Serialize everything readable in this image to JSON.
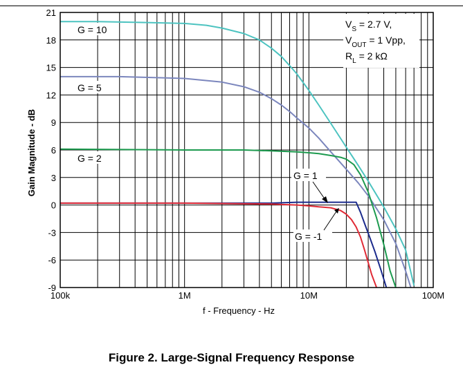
{
  "figure": {
    "caption": "Figure 2. Large-Signal Frequency Response"
  },
  "chart_data": {
    "type": "line",
    "title": "",
    "xlabel": "f - Frequency - Hz",
    "ylabel": "Gain Magnitude - dB",
    "x_scale": "log",
    "xlim": [
      100000,
      100000000
    ],
    "ylim": [
      -9,
      21
    ],
    "grid": true,
    "x_ticks": [
      {
        "value": 100000,
        "label": "100k"
      },
      {
        "value": 1000000,
        "label": "1M"
      },
      {
        "value": 10000000,
        "label": "10M"
      },
      {
        "value": 100000000,
        "label": "100M"
      }
    ],
    "y_ticks": [
      {
        "value": 21,
        "label": "21"
      },
      {
        "value": 18,
        "label": "18"
      },
      {
        "value": 15,
        "label": "15"
      },
      {
        "value": 12,
        "label": "12"
      },
      {
        "value": 9,
        "label": "9"
      },
      {
        "value": 6,
        "label": "6"
      },
      {
        "value": 3,
        "label": "3"
      },
      {
        "value": 0,
        "label": "0"
      },
      {
        "value": -3,
        "label": "-3"
      },
      {
        "value": -6,
        "label": "-6"
      },
      {
        "value": -9,
        "label": "-9"
      }
    ],
    "conditions": {
      "vs_main": "V",
      "vs_sub": "S",
      "vs_rest": " = 2.7 V,",
      "vout_main": "V",
      "vout_sub": "OUT",
      "vout_rest": " = 1 Vpp,",
      "rl_main": "R",
      "rl_sub": "L",
      "rl_rest": " = 2 kΩ"
    },
    "series": [
      {
        "label": "G = 10",
        "color": "#4cc3c0",
        "x": [
          100000,
          200000,
          500000,
          1000000,
          1500000,
          2000000,
          3000000,
          4000000,
          5000000,
          6000000,
          7000000,
          8000000,
          10000000,
          12000000,
          15000000,
          20000000,
          25000000,
          30000000,
          40000000,
          50000000,
          60000000,
          70000000
        ],
        "y": [
          20.0,
          20.0,
          19.9,
          19.8,
          19.6,
          19.3,
          18.7,
          18.0,
          17.1,
          16.2,
          15.2,
          14.3,
          12.5,
          10.9,
          8.9,
          6.3,
          4.3,
          2.6,
          -0.2,
          -2.6,
          -4.9,
          -8.8
        ]
      },
      {
        "label": "G = 5",
        "color": "#7b86bd",
        "x": [
          100000,
          300000,
          1000000,
          2000000,
          3000000,
          4000000,
          5000000,
          6000000,
          7000000,
          8000000,
          10000000,
          12000000,
          15000000,
          20000000,
          25000000,
          30000000,
          40000000,
          50000000,
          60000000,
          66000000
        ],
        "y": [
          14.0,
          14.0,
          13.8,
          13.4,
          12.9,
          12.3,
          11.6,
          10.9,
          10.2,
          9.5,
          8.4,
          7.3,
          5.8,
          3.9,
          2.4,
          1.0,
          -1.6,
          -4.2,
          -7.2,
          -9.0
        ]
      },
      {
        "label": "G = 2",
        "color": "#1c9a4e",
        "x": [
          100000,
          1000000,
          3000000,
          5000000,
          8000000,
          10000000,
          12000000,
          15000000,
          18000000,
          20000000,
          23000000,
          26000000,
          30000000,
          35000000,
          40000000,
          45000000,
          50000000
        ],
        "y": [
          6.1,
          6.0,
          6.0,
          5.9,
          5.8,
          5.7,
          5.6,
          5.4,
          5.2,
          5.0,
          4.4,
          3.3,
          1.4,
          -1.4,
          -4.3,
          -7.2,
          -9.0
        ]
      },
      {
        "label": "G = 1",
        "color": "#1a2a8c",
        "x": [
          100000,
          1000000,
          5000000,
          8000000,
          10000000,
          12000000,
          15000000,
          18000000,
          20000000,
          22000000,
          24000000,
          26000000,
          28000000,
          31000000,
          34000000,
          38000000,
          42000000
        ],
        "y": [
          0.2,
          0.2,
          0.2,
          0.3,
          0.3,
          0.3,
          0.3,
          0.3,
          0.3,
          0.3,
          0.3,
          -0.8,
          -2.0,
          -3.6,
          -5.1,
          -7.1,
          -9.0
        ]
      },
      {
        "label": "G = -1",
        "color": "#e02a35",
        "x": [
          100000,
          1000000,
          5000000,
          8000000,
          10000000,
          12000000,
          15000000,
          18000000,
          20000000,
          22000000,
          24000000,
          26000000,
          28000000,
          30000000,
          32000000,
          35000000
        ],
        "y": [
          0.2,
          0.2,
          0.1,
          0.0,
          -0.1,
          -0.2,
          -0.3,
          -0.6,
          -1.0,
          -1.6,
          -2.4,
          -3.5,
          -4.9,
          -6.3,
          -7.6,
          -9.0
        ]
      }
    ]
  }
}
